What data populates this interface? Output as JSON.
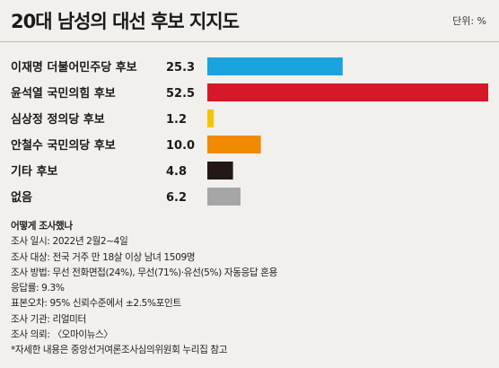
{
  "header": {
    "title": "20대 남성의 대선 후보 지지도",
    "unit": "단위: %"
  },
  "chart_data": {
    "type": "bar",
    "orientation": "horizontal",
    "title": "20대 남성의 대선 후보 지지도",
    "unit": "%",
    "categories": [
      "이재명 더불어민주당 후보",
      "윤석열 국민의힘 후보",
      "심상정 정의당 후보",
      "안철수 국민의당 후보",
      "기타 후보",
      "없음"
    ],
    "values": [
      25.3,
      52.5,
      1.2,
      10.0,
      4.8,
      6.2
    ],
    "value_labels": [
      "25.3",
      "52.5",
      "1.2",
      "10.0",
      "4.8",
      "6.2"
    ],
    "colors": [
      "#1aa3de",
      "#d7182a",
      "#f5c400",
      "#f08a00",
      "#231815",
      "#a6a6a6"
    ],
    "xlim": [
      0,
      52.5
    ],
    "grid": false,
    "legend": "none"
  },
  "notes": {
    "heading": "어떻게 조사했나",
    "lines": [
      "조사 일시: 2022년 2월2~4일",
      "조사 대상: 전국 거주 만 18살 이상 남녀 1509명",
      "조사 방법: 무선 전화면접(24%), 무선(71%)·유선(5%) 자동응답 혼용",
      "응답률: 9.3%",
      "표본오차: 95% 신뢰수준에서 ±2.5%포인트",
      "조사 기관: 리얼미터",
      "조사 의뢰: 〈오마이뉴스〉",
      "*자세한 내용은 중앙선거여론조사심의위원회 누리집 참고"
    ]
  }
}
